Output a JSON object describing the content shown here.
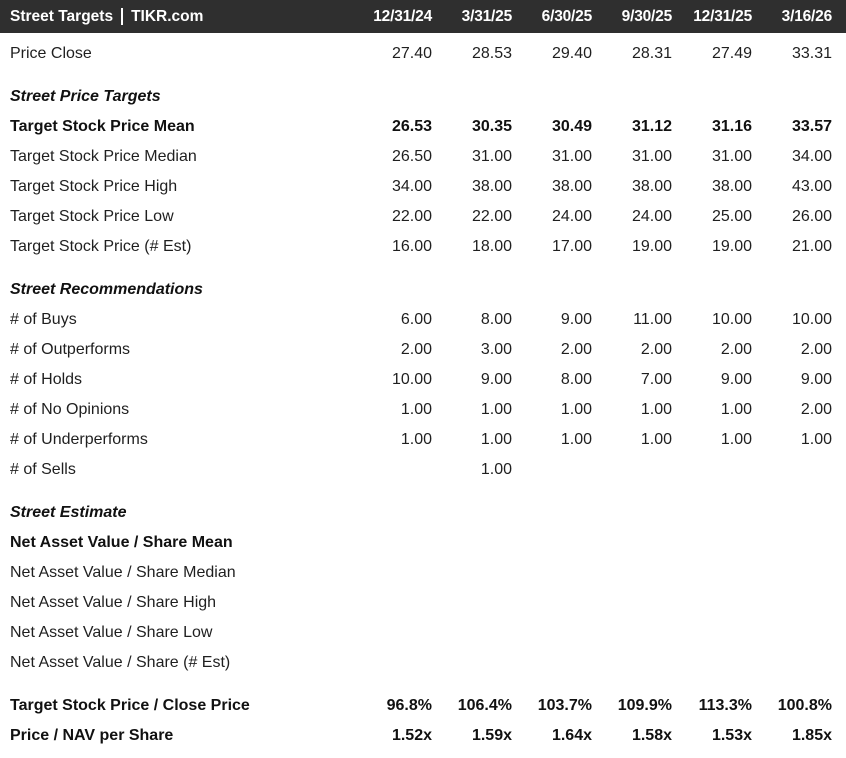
{
  "header": {
    "title": "Street Targets",
    "separator": "|",
    "brand": "TIKR.com",
    "columns": [
      "12/31/24",
      "3/31/25",
      "6/30/25",
      "9/30/25",
      "12/31/25",
      "3/16/26"
    ],
    "bg_color": "#2f2f2f",
    "text_color": "#ffffff"
  },
  "colors": {
    "row_text": "#1f1f1f",
    "bold_text": "#111111",
    "background": "#ffffff"
  },
  "rows": [
    {
      "type": "data",
      "label": "Price Close",
      "bold": false,
      "values": [
        "27.40",
        "28.53",
        "29.40",
        "28.31",
        "27.49",
        "33.31"
      ]
    },
    {
      "type": "section",
      "label": "Street Price Targets"
    },
    {
      "type": "data",
      "label": "Target Stock Price Mean",
      "bold": true,
      "values": [
        "26.53",
        "30.35",
        "30.49",
        "31.12",
        "31.16",
        "33.57"
      ]
    },
    {
      "type": "data",
      "label": "Target Stock Price Median",
      "bold": false,
      "values": [
        "26.50",
        "31.00",
        "31.00",
        "31.00",
        "31.00",
        "34.00"
      ]
    },
    {
      "type": "data",
      "label": "Target Stock Price High",
      "bold": false,
      "values": [
        "34.00",
        "38.00",
        "38.00",
        "38.00",
        "38.00",
        "43.00"
      ]
    },
    {
      "type": "data",
      "label": "Target Stock Price Low",
      "bold": false,
      "values": [
        "22.00",
        "22.00",
        "24.00",
        "24.00",
        "25.00",
        "26.00"
      ]
    },
    {
      "type": "data",
      "label": "Target Stock Price (# Est)",
      "bold": false,
      "values": [
        "16.00",
        "18.00",
        "17.00",
        "19.00",
        "19.00",
        "21.00"
      ]
    },
    {
      "type": "section",
      "label": "Street Recommendations"
    },
    {
      "type": "data",
      "label": "# of Buys",
      "bold": false,
      "values": [
        "6.00",
        "8.00",
        "9.00",
        "11.00",
        "10.00",
        "10.00"
      ]
    },
    {
      "type": "data",
      "label": "# of Outperforms",
      "bold": false,
      "values": [
        "2.00",
        "3.00",
        "2.00",
        "2.00",
        "2.00",
        "2.00"
      ]
    },
    {
      "type": "data",
      "label": "# of Holds",
      "bold": false,
      "values": [
        "10.00",
        "9.00",
        "8.00",
        "7.00",
        "9.00",
        "9.00"
      ]
    },
    {
      "type": "data",
      "label": "# of No Opinions",
      "bold": false,
      "values": [
        "1.00",
        "1.00",
        "1.00",
        "1.00",
        "1.00",
        "2.00"
      ]
    },
    {
      "type": "data",
      "label": "# of Underperforms",
      "bold": false,
      "values": [
        "1.00",
        "1.00",
        "1.00",
        "1.00",
        "1.00",
        "1.00"
      ]
    },
    {
      "type": "data",
      "label": "# of Sells",
      "bold": false,
      "values": [
        "",
        "1.00",
        "",
        "",
        "",
        ""
      ]
    },
    {
      "type": "section",
      "label": "Street Estimate"
    },
    {
      "type": "data",
      "label": "Net Asset Value / Share Mean",
      "bold": true,
      "values": [
        "",
        "",
        "",
        "",
        "",
        ""
      ]
    },
    {
      "type": "data",
      "label": "Net Asset Value / Share Median",
      "bold": false,
      "values": [
        "",
        "",
        "",
        "",
        "",
        ""
      ]
    },
    {
      "type": "data",
      "label": "Net Asset Value / Share High",
      "bold": false,
      "values": [
        "",
        "",
        "",
        "",
        "",
        ""
      ]
    },
    {
      "type": "data",
      "label": "Net Asset Value / Share Low",
      "bold": false,
      "values": [
        "",
        "",
        "",
        "",
        "",
        ""
      ]
    },
    {
      "type": "data",
      "label": "Net Asset Value / Share (# Est)",
      "bold": false,
      "values": [
        "",
        "",
        "",
        "",
        "",
        ""
      ]
    },
    {
      "type": "spacer"
    },
    {
      "type": "data",
      "label": "Target Stock Price / Close Price",
      "bold": true,
      "values": [
        "96.8%",
        "106.4%",
        "103.7%",
        "109.9%",
        "113.3%",
        "100.8%"
      ]
    },
    {
      "type": "data",
      "label": "Price / NAV per Share",
      "bold": true,
      "values": [
        "1.52x",
        "1.59x",
        "1.64x",
        "1.58x",
        "1.53x",
        "1.85x"
      ]
    }
  ]
}
